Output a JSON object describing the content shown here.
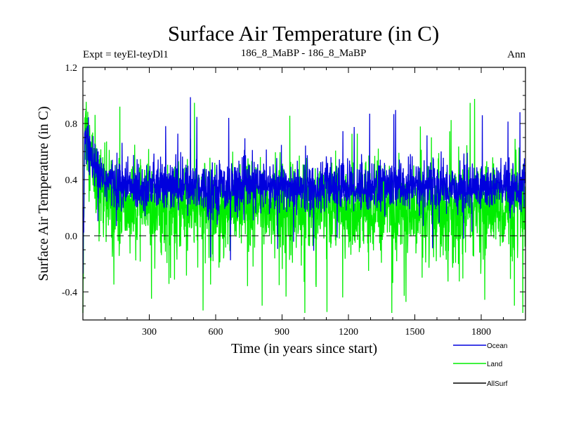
{
  "chart_data": {
    "type": "line",
    "title": "Surface Air Temperature (in C)",
    "expt_label": "Expt = teyEl-teyDl1",
    "subtitle": "186_8_MaBP - 186_8_MaBP",
    "period_label": "Ann",
    "xlabel": "Time (in years since start)",
    "ylabel": "Surface Air Temperature (in C)",
    "xlim": [
      0,
      2000
    ],
    "ylim": [
      -0.6,
      1.2
    ],
    "xticks": [
      300,
      600,
      900,
      1200,
      1500,
      1800
    ],
    "xtick_labels": [
      "300",
      "600",
      "900",
      "1200",
      "1500",
      "1800"
    ],
    "yticks": [
      -0.4,
      0.0,
      0.4,
      0.8,
      1.2
    ],
    "ytick_labels": [
      "-0.4",
      "0.0",
      "0.4",
      "0.8",
      "1.2"
    ],
    "reference_line": 0.0,
    "series": [
      {
        "name": "Ocean",
        "color": "#0000dd",
        "baseline": 0.35,
        "noise": 0.09,
        "start": -0.35,
        "peak": 0.85
      },
      {
        "name": "Land",
        "color": "#00ee00",
        "baseline": 0.2,
        "noise": 0.15,
        "start": -0.55,
        "peak": 0.95
      },
      {
        "name": "AllSurf",
        "color": "#000000",
        "baseline": null,
        "noise": null
      }
    ]
  }
}
